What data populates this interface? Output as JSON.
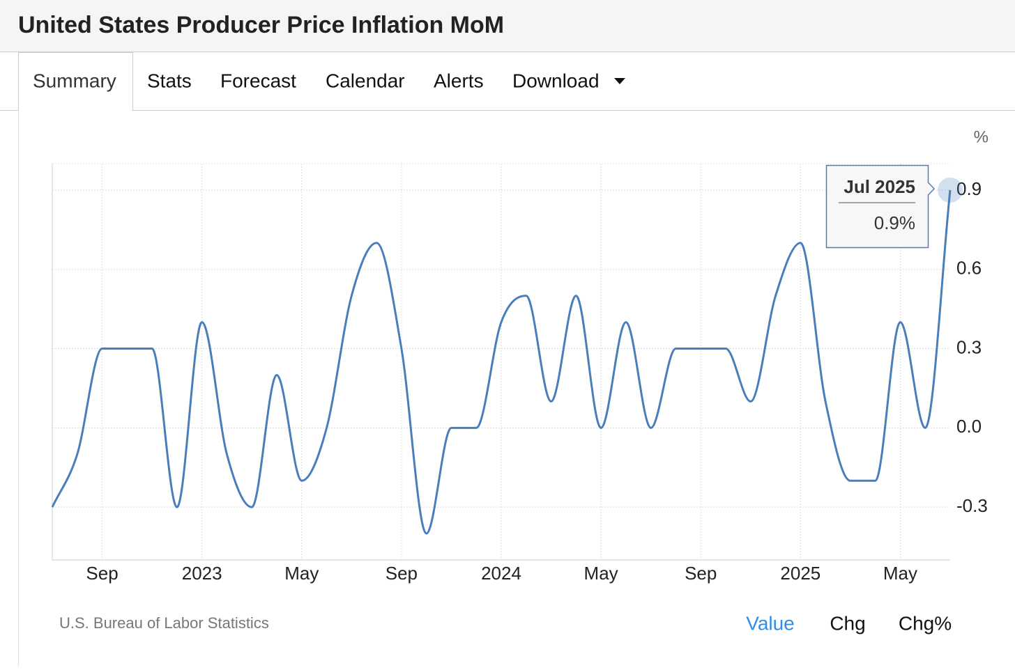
{
  "header": {
    "title": "United States Producer Price Inflation MoM"
  },
  "tabs": [
    "Summary",
    "Stats",
    "Forecast",
    "Calendar",
    "Alerts",
    "Download"
  ],
  "chart_data": {
    "type": "line",
    "y_unit": "%",
    "categories": [
      null,
      null,
      "Sep",
      null,
      null,
      null,
      "2023",
      null,
      null,
      null,
      "May",
      null,
      null,
      null,
      "Sep",
      null,
      null,
      null,
      "2024",
      null,
      null,
      null,
      "May",
      null,
      null,
      null,
      "Sep",
      null,
      null,
      null,
      "2025",
      null,
      null,
      null,
      "May",
      null,
      null
    ],
    "series": [
      {
        "name": "Value",
        "color": "#4a7ebb",
        "values": [
          -0.3,
          -0.1,
          0.3,
          0.3,
          0.3,
          -0.3,
          0.4,
          -0.1,
          -0.3,
          0.2,
          -0.2,
          0.0,
          0.5,
          0.7,
          0.3,
          -0.4,
          0.0,
          0.0,
          0.4,
          0.5,
          0.1,
          0.5,
          0.0,
          0.4,
          0.0,
          0.3,
          0.3,
          0.3,
          0.1,
          0.5,
          0.7,
          0.1,
          -0.2,
          -0.2,
          0.4,
          0.0,
          0.9
        ]
      }
    ],
    "ylim": [
      -0.5,
      1.0
    ],
    "yticks": [
      -0.3,
      {
        "value": 0,
        "label": "0.0"
      },
      0.3,
      0.6,
      0.9
    ],
    "grid": true,
    "tooltip": {
      "category": "Jul 2025",
      "value_label": "0.9%"
    },
    "source": "U.S. Bureau of Labor Statistics",
    "views": [
      "Value",
      "Chg",
      "Chg%"
    ]
  }
}
